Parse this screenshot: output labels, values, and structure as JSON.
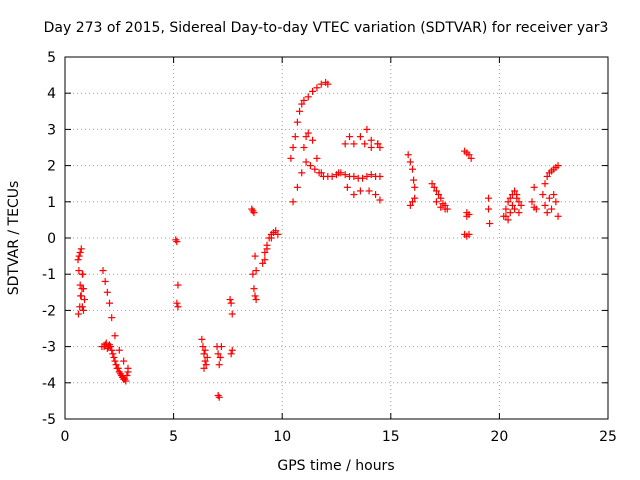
{
  "chart_data": {
    "type": "scatter",
    "title": "Day 273 of 2015, Sidereal Day-to-day VTEC variation (SDTVAR) for receiver yar3",
    "xlabel": "GPS time / hours",
    "ylabel": "SDTVAR / TECUs",
    "xlim": [
      0,
      25
    ],
    "ylim": [
      -5,
      5
    ],
    "xticks": [
      "0",
      "5",
      "10",
      "15",
      "20",
      "25"
    ],
    "yticks": [
      "-5",
      "-4",
      "-3",
      "-2",
      "-1",
      "0",
      "1",
      "2",
      "3",
      "4",
      "5"
    ],
    "grid": true,
    "marker": "+",
    "series": [
      {
        "name": "SDTVAR",
        "color": "#ff0000",
        "x": [
          0.6,
          0.65,
          0.7,
          0.75,
          0.8,
          0.85,
          0.9,
          0.62,
          0.68,
          0.72,
          0.78,
          0.82,
          0.64,
          0.7,
          0.75,
          0.8,
          0.85,
          1.7,
          1.8,
          1.85,
          1.9,
          1.95,
          2.0,
          2.05,
          2.1,
          2.15,
          2.2,
          2.25,
          2.3,
          2.35,
          2.4,
          2.45,
          2.5,
          2.55,
          2.6,
          2.65,
          2.7,
          2.75,
          2.8,
          2.85,
          2.9,
          1.75,
          1.85,
          1.95,
          2.05,
          2.15,
          2.3,
          2.5,
          2.7,
          2.9,
          5.1,
          5.15,
          5.2,
          5.15,
          5.2,
          6.3,
          6.35,
          6.4,
          6.45,
          6.5,
          6.55,
          6.4,
          6.45,
          7.0,
          7.05,
          7.1,
          7.15,
          7.2,
          7.05,
          7.1,
          7.6,
          7.65,
          7.7,
          7.7,
          7.65,
          8.6,
          8.65,
          8.7,
          8.75,
          8.8,
          8.65,
          8.7,
          8.75,
          8.8,
          9.1,
          9.2,
          9.3,
          9.4,
          9.5,
          9.6,
          9.7,
          9.8,
          9.2,
          9.3,
          9.5,
          10.4,
          10.5,
          10.6,
          10.7,
          10.8,
          10.9,
          11.0,
          11.2,
          11.4,
          11.6,
          11.8,
          12.0,
          12.1,
          11.0,
          11.1,
          11.2,
          11.4,
          11.6,
          11.8,
          10.5,
          10.7,
          10.9,
          11.1,
          11.3,
          11.5,
          11.7,
          11.9,
          12.1,
          12.3,
          12.5,
          12.7,
          12.9,
          13.1,
          13.3,
          13.5,
          13.7,
          13.9,
          14.1,
          14.3,
          14.5,
          12.6,
          12.9,
          13.1,
          13.3,
          13.6,
          13.9,
          14.1,
          14.4,
          14.5,
          13.0,
          13.3,
          13.6,
          14.0,
          14.3,
          14.5,
          13.8,
          14.1,
          14.4,
          15.8,
          15.9,
          16.0,
          16.05,
          16.1,
          15.9,
          16.0,
          16.1,
          16.9,
          17.0,
          17.1,
          17.2,
          17.3,
          17.4,
          17.5,
          17.6,
          17.1,
          17.3,
          17.5,
          18.4,
          18.5,
          18.6,
          18.7,
          18.5,
          18.6,
          18.4,
          18.5,
          18.6,
          18.5,
          19.5,
          19.5,
          19.55,
          20.2,
          20.3,
          20.4,
          20.5,
          20.6,
          20.7,
          20.8,
          20.9,
          21.0,
          20.3,
          20.5,
          20.7,
          20.9,
          20.4,
          20.6,
          20.8,
          21.5,
          21.6,
          21.7,
          21.6,
          22.0,
          22.1,
          22.2,
          22.3,
          22.4,
          22.5,
          22.6,
          22.7,
          22.2,
          22.4,
          22.6,
          22.1,
          22.3,
          22.5,
          22.7
        ],
        "y": [
          -0.6,
          -0.5,
          -0.4,
          -0.3,
          -1.0,
          -1.4,
          -1.7,
          -2.1,
          -1.9,
          -1.6,
          -1.4,
          -1.0,
          -0.9,
          -1.3,
          -1.6,
          -1.9,
          -2.0,
          -3.0,
          -3.0,
          -2.95,
          -2.9,
          -3.05,
          -3.0,
          -2.95,
          -3.0,
          -3.1,
          -3.2,
          -3.3,
          -3.4,
          -3.5,
          -3.6,
          -3.6,
          -3.7,
          -3.75,
          -3.8,
          -3.85,
          -3.9,
          -3.9,
          -3.95,
          -3.8,
          -3.6,
          -0.9,
          -1.2,
          -1.5,
          -1.8,
          -2.2,
          -2.7,
          -3.1,
          -3.4,
          -3.7,
          -0.05,
          -0.1,
          -1.3,
          -1.8,
          -1.9,
          -2.8,
          -3.0,
          -3.2,
          -3.4,
          -3.5,
          -3.3,
          -3.6,
          -3.1,
          -3.0,
          -3.2,
          -3.5,
          -3.3,
          -3.0,
          -4.35,
          -4.4,
          -1.7,
          -1.8,
          -2.1,
          -3.1,
          -3.2,
          0.8,
          0.75,
          0.7,
          -0.5,
          -0.9,
          -1.0,
          -1.4,
          -1.6,
          -1.7,
          -0.7,
          -0.4,
          -0.2,
          0.0,
          0.1,
          0.15,
          0.2,
          0.1,
          -0.6,
          -0.3,
          0.0,
          2.2,
          2.5,
          2.8,
          3.2,
          3.5,
          3.7,
          3.8,
          3.9,
          4.05,
          4.15,
          4.25,
          4.3,
          4.25,
          2.5,
          2.8,
          2.9,
          2.7,
          2.2,
          1.8,
          1.0,
          1.4,
          1.8,
          2.1,
          2.0,
          1.9,
          1.8,
          1.7,
          1.7,
          1.7,
          1.75,
          1.8,
          1.75,
          1.7,
          1.7,
          1.65,
          1.65,
          1.7,
          1.75,
          1.7,
          1.7,
          1.8,
          2.6,
          2.8,
          2.6,
          2.8,
          3.0,
          2.7,
          2.6,
          2.5,
          1.4,
          1.2,
          1.3,
          1.3,
          1.2,
          1.05,
          2.6,
          2.5,
          2.6,
          2.3,
          2.1,
          1.9,
          1.6,
          1.4,
          0.9,
          1.0,
          1.1,
          1.5,
          1.4,
          1.3,
          1.2,
          1.1,
          0.95,
          0.9,
          0.8,
          1.0,
          0.85,
          0.8,
          2.4,
          2.35,
          2.3,
          2.2,
          0.7,
          0.65,
          0.1,
          0.05,
          0.1,
          0.6,
          1.1,
          0.8,
          0.4,
          0.6,
          0.8,
          1.0,
          1.1,
          1.2,
          1.3,
          1.1,
          1.0,
          0.9,
          0.6,
          0.7,
          0.8,
          0.7,
          0.5,
          0.9,
          1.2,
          1.0,
          1.4,
          0.8,
          0.85,
          1.2,
          1.5,
          1.7,
          1.8,
          1.85,
          1.9,
          1.95,
          2.0,
          0.7,
          0.8,
          1.0,
          0.9,
          1.1,
          1.2,
          0.6
        ]
      }
    ]
  }
}
